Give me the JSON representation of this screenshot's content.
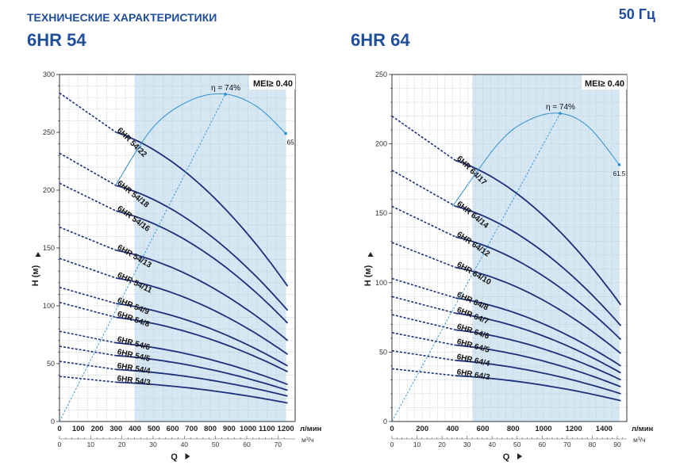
{
  "header": {
    "subtitle": "ТЕХНИЧЕСКИЕ ХАРАКТЕРИСТИКИ",
    "frequency": "50 Гц"
  },
  "chart_data": [
    {
      "type": "line",
      "title": "6HR 54",
      "xlabel": "Q",
      "ylabel": "H (м)",
      "x_unit": "л/мин",
      "x2_unit": "м³/ч",
      "xlim": [
        0,
        1250
      ],
      "ylim": [
        0,
        300
      ],
      "x_ticks": [
        0,
        100,
        200,
        300,
        400,
        500,
        600,
        700,
        800,
        900,
        1000,
        1100,
        1200
      ],
      "x_ticks_labels": [
        "0",
        "100",
        "200",
        "300",
        "400",
        "500",
        "600",
        "700",
        "800",
        "900",
        "1000",
        "1100",
        "1200"
      ],
      "x2_ticks": [
        0,
        10,
        20,
        30,
        40,
        50,
        60,
        70
      ],
      "x2_ticks_labels": [
        "0",
        "10",
        "20",
        "30",
        "40",
        "50",
        "60",
        "70"
      ],
      "y_ticks": [
        0,
        50,
        100,
        150,
        200,
        250,
        300
      ],
      "y_ticks_labels": [
        "0",
        "50",
        "100",
        "150",
        "200",
        "250",
        "300"
      ],
      "operating_range": [
        400,
        1200
      ],
      "mei": "MEI≥ 0.40",
      "efficiency_label": "η = 74%",
      "efficiency_end_label": "65",
      "efficiency_curve": {
        "x": [
          300,
          500,
          700,
          880,
          1050,
          1200
        ],
        "y": [
          205,
          255,
          278,
          283,
          272,
          249
        ]
      },
      "bep_line": {
        "x": [
          0,
          880
        ],
        "y": [
          0,
          283
        ]
      },
      "series": [
        {
          "name": "6HR 54/22",
          "h0": 284,
          "h_start": 250,
          "h_end": 117
        },
        {
          "name": "6HR 54/18",
          "h0": 232,
          "h_start": 204,
          "h_end": 96
        },
        {
          "name": "6HR 54/16",
          "h0": 206,
          "h_start": 182,
          "h_end": 85
        },
        {
          "name": "6HR 54/13",
          "h0": 168,
          "h_start": 148,
          "h_end": 70
        },
        {
          "name": "6HR 54/11",
          "h0": 141,
          "h_start": 124,
          "h_end": 58
        },
        {
          "name": "6HR 54/9",
          "h0": 116,
          "h_start": 102,
          "h_end": 48
        },
        {
          "name": "6HR 54/8",
          "h0": 103,
          "h_start": 90,
          "h_end": 43
        },
        {
          "name": "6HR 54/6",
          "h0": 78,
          "h_start": 68,
          "h_end": 32
        },
        {
          "name": "6HR 54/5",
          "h0": 65,
          "h_start": 57,
          "h_end": 27
        },
        {
          "name": "6HR 54/4",
          "h0": 52,
          "h_start": 45,
          "h_end": 22
        },
        {
          "name": "6HR 54/3",
          "h0": 39,
          "h_start": 34,
          "h_end": 16
        }
      ]
    },
    {
      "type": "line",
      "title": "6HR 64",
      "xlabel": "Q",
      "ylabel": "H (м)",
      "x_unit": "л/мин",
      "x2_unit": "м³/ч",
      "xlim": [
        0,
        1550
      ],
      "ylim": [
        0,
        250
      ],
      "x_ticks": [
        0,
        200,
        400,
        600,
        800,
        1000,
        1200,
        1400
      ],
      "x_ticks_labels": [
        "0",
        "200",
        "400",
        "600",
        "800",
        "1000",
        "1200",
        "1400"
      ],
      "x2_ticks": [
        0,
        10,
        20,
        30,
        40,
        50,
        60,
        70,
        80,
        90
      ],
      "x2_ticks_labels": [
        "0",
        "10",
        "20",
        "30",
        "40",
        "50",
        "60",
        "70",
        "80",
        "90"
      ],
      "y_ticks": [
        0,
        50,
        100,
        150,
        200,
        250
      ],
      "y_ticks_labels": [
        "0",
        "50",
        "100",
        "150",
        "200",
        "250"
      ],
      "operating_range": [
        530,
        1500
      ],
      "mei": "MEI≥ 0.40",
      "efficiency_label": "η = 74%",
      "efficiency_end_label": "61.5",
      "efficiency_curve": {
        "x": [
          400,
          700,
          900,
          1110,
          1300,
          1500
        ],
        "y": [
          155,
          200,
          217,
          222,
          212,
          185
        ]
      },
      "bep_line": {
        "x": [
          0,
          1110
        ],
        "y": [
          0,
          222
        ]
      },
      "series": [
        {
          "name": "6HR 64/17",
          "h0": 220,
          "h_start": 188,
          "h_end": 84
        },
        {
          "name": "6HR 64/14",
          "h0": 181,
          "h_start": 155,
          "h_end": 69
        },
        {
          "name": "6HR 64/12",
          "h0": 155,
          "h_start": 133,
          "h_end": 59
        },
        {
          "name": "6HR 64/10",
          "h0": 129,
          "h_start": 111,
          "h_end": 49
        },
        {
          "name": "6HR 64/8",
          "h0": 103,
          "h_start": 89,
          "h_end": 40
        },
        {
          "name": "6HR 64/7",
          "h0": 90,
          "h_start": 78,
          "h_end": 35
        },
        {
          "name": "6HR 64/6",
          "h0": 77,
          "h_start": 66,
          "h_end": 30
        },
        {
          "name": "6HR 64/5",
          "h0": 64,
          "h_start": 55,
          "h_end": 25
        },
        {
          "name": "6HR 64/4",
          "h0": 51,
          "h_start": 44,
          "h_end": 20
        },
        {
          "name": "6HR 64/3",
          "h0": 38,
          "h_start": 33,
          "h_end": 15
        }
      ]
    }
  ]
}
